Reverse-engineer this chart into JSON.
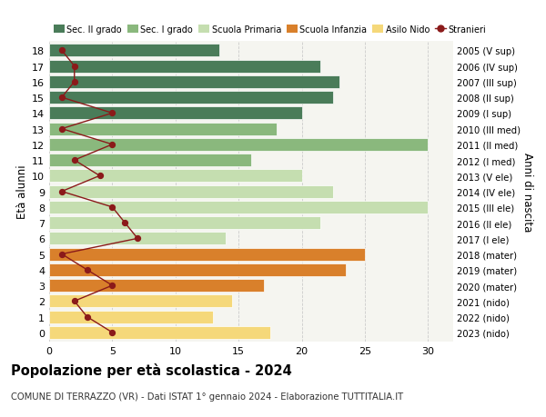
{
  "ages": [
    18,
    17,
    16,
    15,
    14,
    13,
    12,
    11,
    10,
    9,
    8,
    7,
    6,
    5,
    4,
    3,
    2,
    1,
    0
  ],
  "labels_right": [
    "2005 (V sup)",
    "2006 (IV sup)",
    "2007 (III sup)",
    "2008 (II sup)",
    "2009 (I sup)",
    "2010 (III med)",
    "2011 (II med)",
    "2012 (I med)",
    "2013 (V ele)",
    "2014 (IV ele)",
    "2015 (III ele)",
    "2016 (II ele)",
    "2017 (I ele)",
    "2018 (mater)",
    "2019 (mater)",
    "2020 (mater)",
    "2021 (nido)",
    "2022 (nido)",
    "2023 (nido)"
  ],
  "bar_values": [
    13.5,
    21.5,
    23,
    22.5,
    20,
    18,
    30,
    16,
    20,
    22.5,
    30,
    21.5,
    14,
    25,
    23.5,
    17,
    14.5,
    13,
    17.5
  ],
  "bar_colors": [
    "#4a7c59",
    "#4a7c59",
    "#4a7c59",
    "#4a7c59",
    "#4a7c59",
    "#8ab87d",
    "#8ab87d",
    "#8ab87d",
    "#c5deb0",
    "#c5deb0",
    "#c5deb0",
    "#c5deb0",
    "#c5deb0",
    "#d9802b",
    "#d9802b",
    "#d9802b",
    "#f5d87a",
    "#f5d87a",
    "#f5d87a"
  ],
  "stranieri_values": [
    1,
    2,
    2,
    1,
    5,
    1,
    5,
    2,
    4,
    1,
    5,
    6,
    7,
    1,
    3,
    5,
    2,
    3,
    5
  ],
  "stranieri_color": "#8b1a1a",
  "legend_labels": [
    "Sec. II grado",
    "Sec. I grado",
    "Scuola Primaria",
    "Scuola Infanzia",
    "Asilo Nido",
    "Stranieri"
  ],
  "legend_colors": [
    "#4a7c59",
    "#8ab87d",
    "#c5deb0",
    "#d9802b",
    "#f5d87a",
    "#8b1a1a"
  ],
  "title": "Popolazione per età scolastica - 2024",
  "subtitle": "COMUNE DI TERRAZZO (VR) - Dati ISTAT 1° gennaio 2024 - Elaborazione TUTTITALIA.IT",
  "ylabel": "Età alunni",
  "ylabel_right": "Anni di nascita",
  "xlim": [
    0,
    32
  ],
  "xticks": [
    0,
    5,
    10,
    15,
    20,
    25,
    30
  ],
  "bg_color": "#ffffff",
  "plot_bg_color": "#f5f5f0"
}
